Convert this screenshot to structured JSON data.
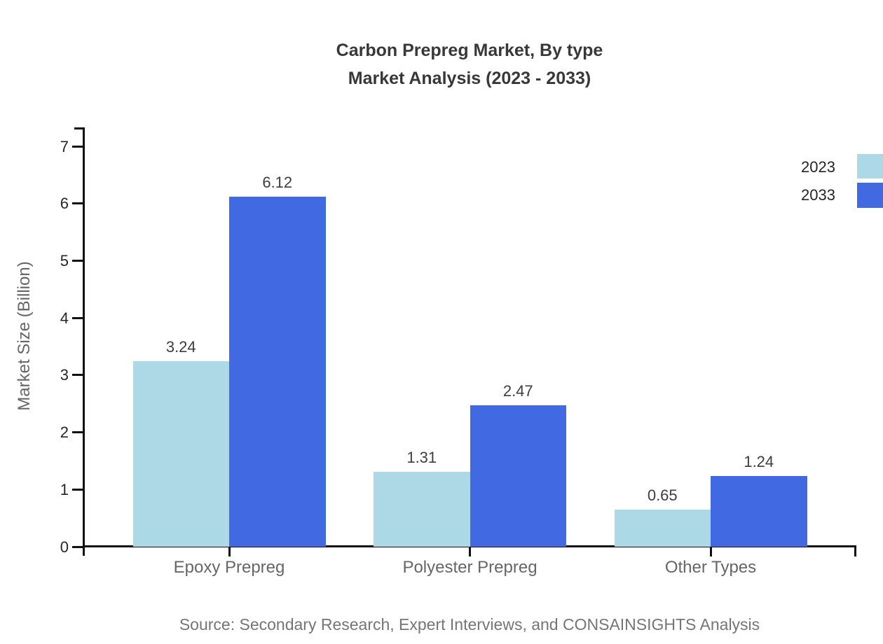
{
  "chart_data": {
    "type": "bar",
    "title_line1": "Carbon Prepreg Market, By type",
    "title_line2": "Market Analysis (2023 - 2033)",
    "categories": [
      "Epoxy Prepreg",
      "Polyester Prepreg",
      "Other Types"
    ],
    "series": [
      {
        "name": "2023",
        "color": "#ADD8E6",
        "values": [
          3.24,
          1.31,
          0.65
        ]
      },
      {
        "name": "2033",
        "color": "#4169E1",
        "values": [
          6.12,
          2.47,
          1.24
        ]
      }
    ],
    "xlabel": "",
    "ylabel": "Market Size (Billion)",
    "ylim": [
      0,
      7
    ],
    "yticks": [
      0,
      1,
      2,
      3,
      4,
      5,
      6,
      7
    ],
    "grid": false,
    "legend_position": "top-right",
    "value_labels_shown": true,
    "style": {
      "axis_color": "#111111",
      "title_color": "#383838",
      "tick_label_color": "#262626",
      "category_label_color": "#666666",
      "value_label_color": "#3d3d3d",
      "source_color": "#757575",
      "background": "#ffffff"
    }
  },
  "footer": {
    "source_text": "Source: Secondary Research, Expert Interviews, and CONSAINSIGHTS Analysis"
  }
}
